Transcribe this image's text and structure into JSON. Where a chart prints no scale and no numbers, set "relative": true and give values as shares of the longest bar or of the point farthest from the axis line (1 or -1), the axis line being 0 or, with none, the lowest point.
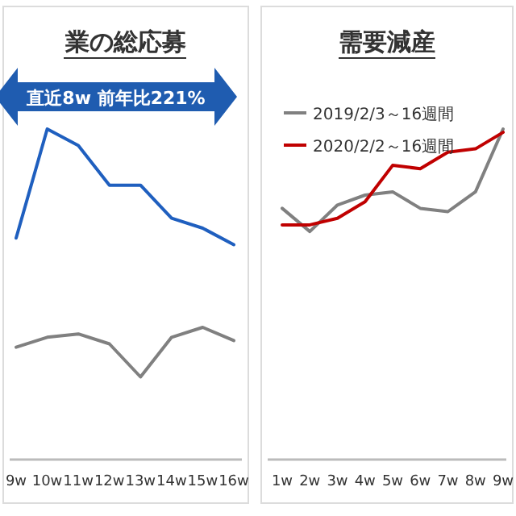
{
  "chart_data": [
    {
      "type": "line",
      "title": "業の総応募",
      "relative": true,
      "categories": [
        "9w",
        "10w",
        "11w",
        "12w",
        "13w",
        "14w",
        "15w",
        "16w"
      ],
      "series": [
        {
          "color": "#1f5fbf",
          "values": [
            0.67,
            1,
            0.95,
            0.83,
            0.83,
            0.73,
            0.7,
            0.65
          ]
        },
        {
          "color": "#808080",
          "values": [
            0.34,
            0.37,
            0.38,
            0.35,
            0.25,
            0.37,
            0.4,
            0.36
          ]
        }
      ],
      "annotations": [
        "直近8w 前年比221%"
      ],
      "legend": false,
      "grid": false,
      "marker": "none",
      "line_style": "solid"
    },
    {
      "type": "line",
      "title": "需要減産",
      "relative": true,
      "categories": [
        "1w",
        "2w",
        "3w",
        "4w",
        "5w",
        "6w",
        "7w",
        "8w",
        "9w"
      ],
      "series": [
        {
          "name": "2019/2/3～16週間",
          "color": "#808080",
          "values": [
            0.76,
            0.69,
            0.77,
            0.8,
            0.81,
            0.76,
            0.75,
            0.81,
            1
          ]
        },
        {
          "name": "2020/2/2～16週間",
          "color": "#c00000",
          "values": [
            0.71,
            0.71,
            0.73,
            0.78,
            0.89,
            0.88,
            0.93,
            0.94,
            0.99
          ]
        }
      ],
      "legend": "top left",
      "grid": false,
      "marker": "none",
      "line_style": "solid"
    }
  ]
}
